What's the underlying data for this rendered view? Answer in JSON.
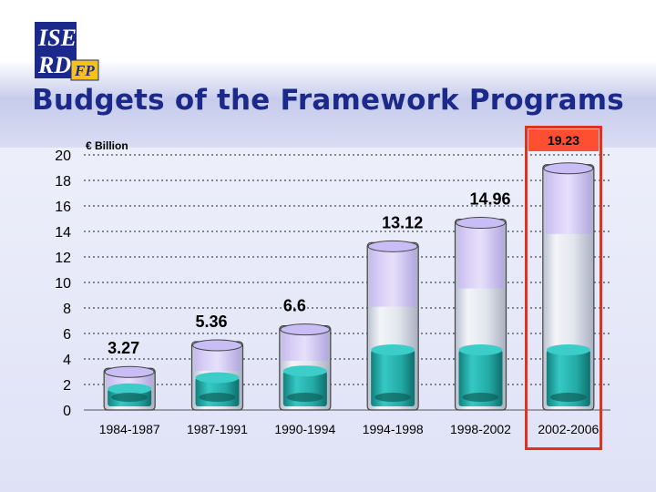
{
  "slide": {
    "title": "Budgets of the Framework Programs",
    "logo": {
      "line1": "ISE",
      "line2": "RD",
      "tag": "FP"
    },
    "unit_label": "€ Billion",
    "highlight_label": "19.23"
  },
  "colors": {
    "title": "#1b2a8a",
    "highlight": "#e0321e",
    "liquid": "#27b4b0",
    "glass": "#d8dde8"
  },
  "chart_data": {
    "type": "bar",
    "categories": [
      "1984-1987",
      "1987-1991",
      "1990-1994",
      "1994-1998",
      "1998-2002",
      "2002-2006"
    ],
    "values": [
      3.27,
      5.36,
      6.6,
      13.12,
      14.96,
      19.23
    ],
    "labels": [
      "3.27",
      "5.36",
      "6.6",
      "13.12",
      "14.96",
      "19.23"
    ],
    "title": "Budgets of the Framework Programs",
    "ylabel": "€ Billion",
    "ylim": [
      0,
      20
    ],
    "yticks": [
      0,
      2,
      4,
      6,
      8,
      10,
      12,
      14,
      16,
      18,
      20
    ],
    "grid": true,
    "highlighted_category": "2002-2006"
  }
}
